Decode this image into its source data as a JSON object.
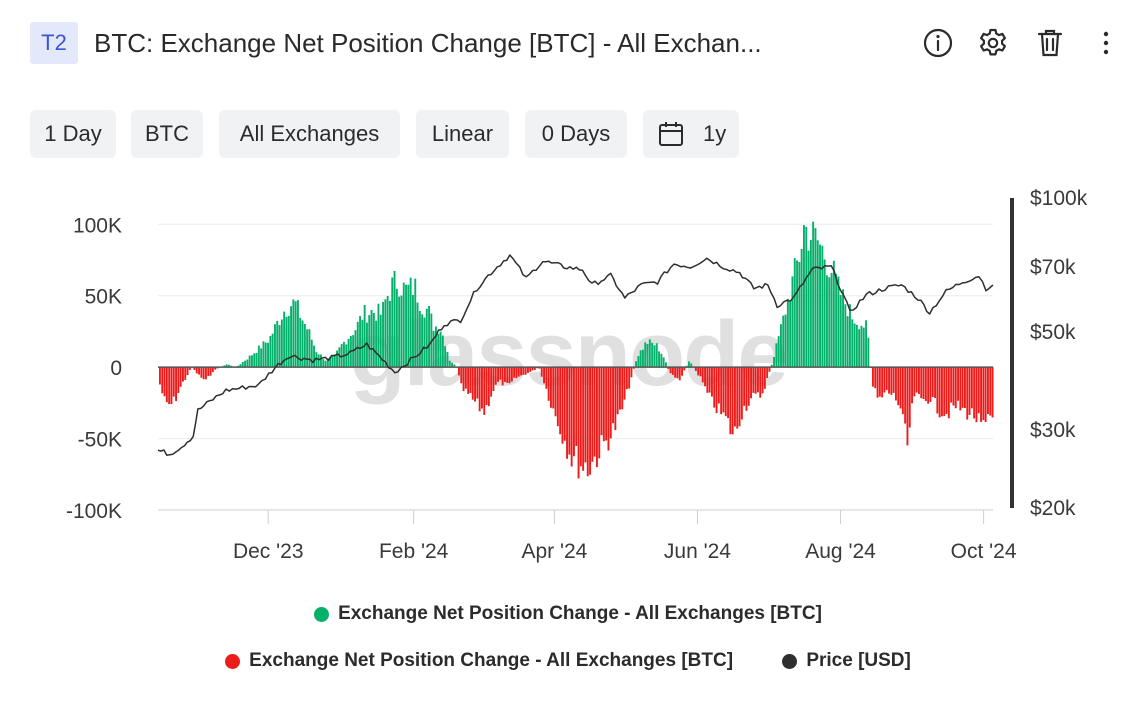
{
  "header": {
    "badge": "T2",
    "title": "BTC: Exchange Net Position Change [BTC] - All Exchan...",
    "icons": [
      "info-icon",
      "gear-icon",
      "trash-icon",
      "more-vertical-icon"
    ]
  },
  "toolbar": {
    "resolution": "1 Day",
    "asset": "BTC",
    "exchange": "All Exchanges",
    "scale": "Linear",
    "moving_average": "0 Days",
    "range": "1y"
  },
  "watermark": "glassnode",
  "colors": {
    "positive": "#05b06b",
    "negative": "#ee1b1b",
    "price": "#2f2f2f",
    "grid": "#ececec"
  },
  "chart_data": {
    "type": "bar",
    "title": "BTC: Exchange Net Position Change [BTC] - All Exchanges",
    "x_range": [
      "2023-10-15",
      "2024-10-05"
    ],
    "x_ticks": [
      "Dec '23",
      "Feb '24",
      "Apr '24",
      "Jun '24",
      "Aug '24",
      "Oct '24"
    ],
    "y_left": {
      "ticks": [
        "100K",
        "50K",
        "0",
        "-50K",
        "-100K"
      ],
      "range": [
        -100000,
        110000
      ]
    },
    "y_right": {
      "scale": "log",
      "ticks": [
        "$100k",
        "$70k",
        "$50k",
        "$30k",
        "$20k"
      ],
      "range": [
        20000,
        100000
      ]
    },
    "series": [
      {
        "name": "Exchange Net Position Change - All Exchanges [BTC]",
        "kind": "bar",
        "points": [
          [
            "2023-10-15",
            -10000
          ],
          [
            "2023-10-18",
            -28000
          ],
          [
            "2023-10-21",
            -26000
          ],
          [
            "2023-10-25",
            -12000
          ],
          [
            "2023-10-29",
            0
          ],
          [
            "2023-11-01",
            -6000
          ],
          [
            "2023-11-04",
            -10000
          ],
          [
            "2023-11-07",
            -3000
          ],
          [
            "2023-11-10",
            0
          ],
          [
            "2023-11-13",
            2000
          ],
          [
            "2023-11-17",
            0
          ],
          [
            "2023-11-20",
            4000
          ],
          [
            "2023-11-23",
            8000
          ],
          [
            "2023-11-27",
            14000
          ],
          [
            "2023-12-01",
            20000
          ],
          [
            "2023-12-04",
            30000
          ],
          [
            "2023-12-07",
            40000
          ],
          [
            "2023-12-10",
            45000
          ],
          [
            "2023-12-12",
            46000
          ],
          [
            "2023-12-15",
            35000
          ],
          [
            "2023-12-18",
            25000
          ],
          [
            "2023-12-21",
            12000
          ],
          [
            "2023-12-25",
            5000
          ],
          [
            "2023-12-29",
            8000
          ],
          [
            "2024-01-01",
            16000
          ],
          [
            "2024-01-04",
            22000
          ],
          [
            "2024-01-07",
            28000
          ],
          [
            "2024-01-10",
            38000
          ],
          [
            "2024-01-14",
            40000
          ],
          [
            "2024-01-18",
            38000
          ],
          [
            "2024-01-20",
            50000
          ],
          [
            "2024-01-23",
            60000
          ],
          [
            "2024-01-25",
            62000
          ],
          [
            "2024-01-28",
            55000
          ],
          [
            "2024-02-01",
            58000
          ],
          [
            "2024-02-04",
            45000
          ],
          [
            "2024-02-07",
            40000
          ],
          [
            "2024-02-09",
            30000
          ],
          [
            "2024-02-12",
            28000
          ],
          [
            "2024-02-14",
            18000
          ],
          [
            "2024-02-16",
            5000
          ],
          [
            "2024-02-19",
            0
          ],
          [
            "2024-02-21",
            -15000
          ],
          [
            "2024-02-25",
            -22000
          ],
          [
            "2024-02-28",
            -28000
          ],
          [
            "2024-03-02",
            -32000
          ],
          [
            "2024-03-05",
            -18000
          ],
          [
            "2024-03-08",
            -10000
          ],
          [
            "2024-03-12",
            -14000
          ],
          [
            "2024-03-15",
            -8000
          ],
          [
            "2024-03-19",
            -5000
          ],
          [
            "2024-03-22",
            -3000
          ],
          [
            "2024-03-25",
            0
          ],
          [
            "2024-03-28",
            -15000
          ],
          [
            "2024-04-01",
            -35000
          ],
          [
            "2024-04-05",
            -52000
          ],
          [
            "2024-04-08",
            -64000
          ],
          [
            "2024-04-12",
            -70000
          ],
          [
            "2024-04-15",
            -72000
          ],
          [
            "2024-04-18",
            -65000
          ],
          [
            "2024-04-22",
            -55000
          ],
          [
            "2024-04-26",
            -45000
          ],
          [
            "2024-04-30",
            -28000
          ],
          [
            "2024-05-03",
            -10000
          ],
          [
            "2024-05-06",
            8000
          ],
          [
            "2024-05-10",
            18000
          ],
          [
            "2024-05-14",
            16000
          ],
          [
            "2024-05-17",
            8000
          ],
          [
            "2024-05-20",
            -5000
          ],
          [
            "2024-05-24",
            -10000
          ],
          [
            "2024-05-28",
            5000
          ],
          [
            "2024-05-31",
            -3000
          ],
          [
            "2024-06-02",
            -8000
          ],
          [
            "2024-06-05",
            -20000
          ],
          [
            "2024-06-09",
            -30000
          ],
          [
            "2024-06-13",
            -38000
          ],
          [
            "2024-06-16",
            -50000
          ],
          [
            "2024-06-20",
            -30000
          ],
          [
            "2024-06-24",
            -22000
          ],
          [
            "2024-06-28",
            -20000
          ],
          [
            "2024-07-02",
            0
          ],
          [
            "2024-07-05",
            20000
          ],
          [
            "2024-07-08",
            40000
          ],
          [
            "2024-07-11",
            60000
          ],
          [
            "2024-07-14",
            80000
          ],
          [
            "2024-07-16",
            100000
          ],
          [
            "2024-07-19",
            95000
          ],
          [
            "2024-07-22",
            90000
          ],
          [
            "2024-07-25",
            80000
          ],
          [
            "2024-07-28",
            70000
          ],
          [
            "2024-07-31",
            55000
          ],
          [
            "2024-08-03",
            45000
          ],
          [
            "2024-08-06",
            35000
          ],
          [
            "2024-08-09",
            32000
          ],
          [
            "2024-08-12",
            28000
          ],
          [
            "2024-08-14",
            -12000
          ],
          [
            "2024-08-17",
            -25000
          ],
          [
            "2024-08-20",
            -18000
          ],
          [
            "2024-08-23",
            -20000
          ],
          [
            "2024-08-26",
            -28000
          ],
          [
            "2024-08-29",
            -58000
          ],
          [
            "2024-09-01",
            -20000
          ],
          [
            "2024-09-04",
            -24000
          ],
          [
            "2024-09-08",
            -22000
          ],
          [
            "2024-09-11",
            -30000
          ],
          [
            "2024-09-15",
            -33000
          ],
          [
            "2024-09-19",
            -28000
          ],
          [
            "2024-09-23",
            -32000
          ],
          [
            "2024-09-27",
            -35000
          ],
          [
            "2024-09-30",
            -45000
          ],
          [
            "2024-10-05",
            -35000
          ]
        ]
      },
      {
        "name": "Price [USD]",
        "kind": "line",
        "axis": "right",
        "points": [
          [
            "2023-10-15",
            27000
          ],
          [
            "2023-10-20",
            26500
          ],
          [
            "2023-10-25",
            27500
          ],
          [
            "2023-10-30",
            29000
          ],
          [
            "2023-11-01",
            33000
          ],
          [
            "2023-11-06",
            34500
          ],
          [
            "2023-11-13",
            36500
          ],
          [
            "2023-11-20",
            37000
          ],
          [
            "2023-11-27",
            37500
          ],
          [
            "2023-12-04",
            41000
          ],
          [
            "2023-12-10",
            43500
          ],
          [
            "2023-12-20",
            42500
          ],
          [
            "2023-12-28",
            43000
          ],
          [
            "2024-01-05",
            44000
          ],
          [
            "2024-01-12",
            46000
          ],
          [
            "2024-01-20",
            42000
          ],
          [
            "2024-01-24",
            40000
          ],
          [
            "2024-02-01",
            43000
          ],
          [
            "2024-02-08",
            46000
          ],
          [
            "2024-02-14",
            51000
          ],
          [
            "2024-02-21",
            52000
          ],
          [
            "2024-02-28",
            61000
          ],
          [
            "2024-03-05",
            66000
          ],
          [
            "2024-03-13",
            72000
          ],
          [
            "2024-03-20",
            64000
          ],
          [
            "2024-03-27",
            70000
          ],
          [
            "2024-04-05",
            68000
          ],
          [
            "2024-04-13",
            67000
          ],
          [
            "2024-04-17",
            62000
          ],
          [
            "2024-04-25",
            65000
          ],
          [
            "2024-05-01",
            58000
          ],
          [
            "2024-05-08",
            62000
          ],
          [
            "2024-05-15",
            63000
          ],
          [
            "2024-05-22",
            69000
          ],
          [
            "2024-05-29",
            68000
          ],
          [
            "2024-06-05",
            71000
          ],
          [
            "2024-06-12",
            68000
          ],
          [
            "2024-06-19",
            66000
          ],
          [
            "2024-06-25",
            61000
          ],
          [
            "2024-07-01",
            62000
          ],
          [
            "2024-07-05",
            56000
          ],
          [
            "2024-07-12",
            58000
          ],
          [
            "2024-07-20",
            67000
          ],
          [
            "2024-07-28",
            68000
          ],
          [
            "2024-08-05",
            54000
          ],
          [
            "2024-08-12",
            59000
          ],
          [
            "2024-08-20",
            61000
          ],
          [
            "2024-08-27",
            62000
          ],
          [
            "2024-09-03",
            58000
          ],
          [
            "2024-09-08",
            54000
          ],
          [
            "2024-09-15",
            60000
          ],
          [
            "2024-09-22",
            63000
          ],
          [
            "2024-09-29",
            65000
          ],
          [
            "2024-10-02",
            61000
          ],
          [
            "2024-10-05",
            62000
          ]
        ]
      }
    ],
    "legend": {
      "placement": "bottom",
      "entries": [
        {
          "label": "Exchange Net Position Change - All Exchanges [BTC]",
          "color": "#05b06b"
        },
        {
          "label": "Exchange Net Position Change - All Exchanges [BTC]",
          "color": "#ee1b1b"
        },
        {
          "label": "Price [USD]",
          "color": "#2f2f2f"
        }
      ]
    },
    "grid": true
  }
}
